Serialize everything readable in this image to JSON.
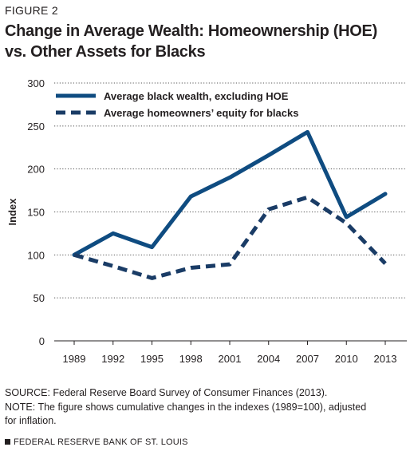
{
  "figure_label": "FIGURE 2",
  "title_line1": "Change in Average Wealth: Homeownership (HOE)",
  "title_line2": "vs. Other Assets for Blacks",
  "source": "SOURCE: Federal Reserve Board Survey of Consumer Finances (2013).",
  "note_line1": "NOTE: The figure shows cumulative changes in the indexes (1989=100), adjusted",
  "note_line2": "for inflation.",
  "footer": "FEDERAL RESERVE BANK OF ST. LOUIS",
  "chart_data": {
    "type": "line",
    "title": "Change in Average Wealth: Homeownership (HOE) vs. Other Assets for Blacks",
    "xlabel": "",
    "ylabel": "Index",
    "categories": [
      "1989",
      "1992",
      "1995",
      "1998",
      "2001",
      "2004",
      "2007",
      "2010",
      "2013"
    ],
    "ylim": [
      0,
      300
    ],
    "yticks": [
      0,
      50,
      100,
      150,
      200,
      250,
      300
    ],
    "grid": "horizontal dotted",
    "legend": "top-left",
    "series": [
      {
        "name": "Average black wealth, excluding HOE",
        "style": "solid",
        "color": "#0f4c81",
        "values": [
          100,
          125,
          109,
          168,
          190,
          216,
          243,
          144,
          171
        ]
      },
      {
        "name": "Average homeowners’ equity for blacks",
        "style": "dashed",
        "color": "#1a3c66",
        "values": [
          100,
          87,
          73,
          85,
          89,
          153,
          167,
          137,
          90
        ]
      }
    ]
  }
}
